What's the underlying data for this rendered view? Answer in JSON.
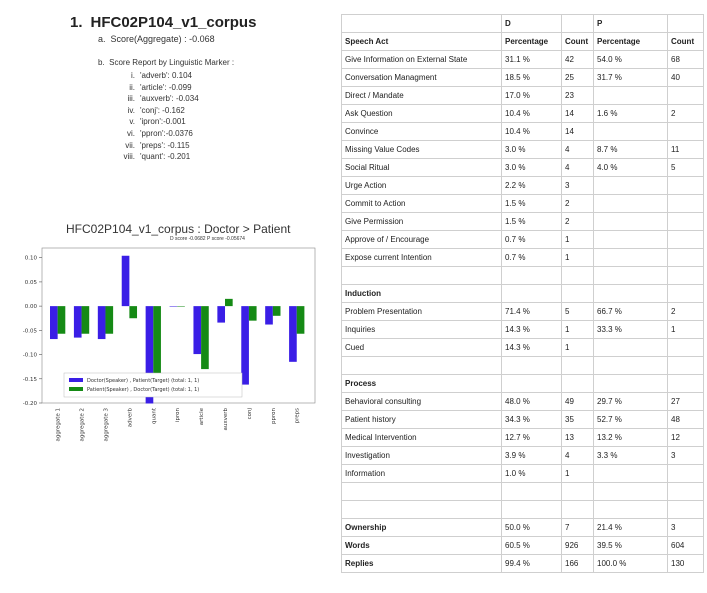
{
  "heading": {
    "number": "1.",
    "title": "HFC02P104_v1_corpus"
  },
  "score": {
    "letter": "a.",
    "label": "Score(Aggregate) : -0.068"
  },
  "report": {
    "letter": "b.",
    "label": "Score Report by Linguistic Marker :"
  },
  "markers": [
    {
      "rn": "i.",
      "text": "'adverb': 0.104"
    },
    {
      "rn": "ii.",
      "text": "'article': -0.099"
    },
    {
      "rn": "iii.",
      "text": "'auxverb': -0.034"
    },
    {
      "rn": "iv.",
      "text": "'conj': -0.162"
    },
    {
      "rn": "v.",
      "text": "'ipron':-0.001"
    },
    {
      "rn": "vi.",
      "text": "'ppron':-0.0376"
    },
    {
      "rn": "vii.",
      "text": "'preps': -0.115"
    },
    {
      "rn": "viii.",
      "text": "'quant': -0.201"
    }
  ],
  "chart_data": {
    "type": "bar",
    "title": "HFC02P104_v1_corpus : Doctor > Patient",
    "subtitle": "D score -0.0682  P score -0.05674",
    "categories": [
      "aggregate 1",
      "aggregate 2",
      "aggregate 3",
      "adverb",
      "quant",
      "ipron",
      "article",
      "auxverb",
      "conj",
      "ppron",
      "preps"
    ],
    "series": [
      {
        "name": "Doctor(Speaker) , Patient(Target) (total: 1, 1)",
        "color": "#3a1ee6",
        "values": [
          -0.068,
          -0.065,
          -0.068,
          0.104,
          -0.201,
          -0.001,
          -0.099,
          -0.034,
          -0.162,
          -0.038,
          -0.115
        ]
      },
      {
        "name": "Patient(Speaker) , Doctor(Target) (total: 1, 1)",
        "color": "#158a15",
        "values": [
          -0.057,
          -0.057,
          -0.057,
          -0.025,
          -0.155,
          -0.001,
          -0.13,
          0.015,
          -0.03,
          -0.02,
          -0.057
        ]
      }
    ],
    "ylim": [
      -0.2,
      0.12
    ],
    "yticks": [
      "0.10",
      "0.05",
      "0.00",
      "-0.05",
      "-0.10",
      "-0.15",
      "-0.20"
    ],
    "legend": "lower-left"
  },
  "table": {
    "header1": [
      "",
      "D",
      "",
      "P",
      ""
    ],
    "header2": [
      "Speech Act",
      "Percentage",
      "Count",
      "Percentage",
      "Count"
    ],
    "rows": [
      [
        "Give Information on External State",
        "31.1 %",
        "42",
        "54.0 %",
        "68"
      ],
      [
        "Conversation Managment",
        "18.5 %",
        "25",
        "31.7 %",
        "40"
      ],
      [
        "Direct / Mandate",
        "17.0 %",
        "23",
        "",
        ""
      ],
      [
        "Ask Question",
        "10.4 %",
        "14",
        "1.6 %",
        "2"
      ],
      [
        "Convince",
        "10.4 %",
        "14",
        "",
        ""
      ],
      [
        "Missing Value Codes",
        "3.0 %",
        "4",
        "8.7 %",
        "11"
      ],
      [
        "Social Ritual",
        "3.0 %",
        "4",
        "4.0 %",
        "5"
      ],
      [
        "Urge Action",
        "2.2 %",
        "3",
        "",
        ""
      ],
      [
        "Commit to Action",
        "1.5 %",
        "2",
        "",
        ""
      ],
      [
        "Give Permission",
        "1.5 %",
        "2",
        "",
        ""
      ],
      [
        "Approve of / Encourage",
        "0.7 %",
        "1",
        "",
        ""
      ],
      [
        "Expose current Intention",
        "0.7 %",
        "1",
        "",
        ""
      ],
      [
        "",
        "",
        "",
        "",
        ""
      ],
      [
        "Induction",
        "",
        "",
        "",
        ""
      ],
      [
        "Problem Presentation",
        "71.4 %",
        "5",
        "66.7 %",
        "2"
      ],
      [
        "Inquiries",
        "14.3 %",
        "1",
        "33.3 %",
        "1"
      ],
      [
        "Cued",
        "14.3 %",
        "1",
        "",
        ""
      ],
      [
        "",
        "",
        "",
        "",
        ""
      ],
      [
        "Process",
        "",
        "",
        "",
        ""
      ],
      [
        "Behavioral consulting",
        "48.0 %",
        "49",
        "29.7 %",
        "27"
      ],
      [
        "Patient history",
        "34.3 %",
        "35",
        "52.7 %",
        "48"
      ],
      [
        "Medical Intervention",
        "12.7 %",
        "13",
        "13.2 %",
        "12"
      ],
      [
        "Investigation",
        "3.9 %",
        "4",
        "3.3 %",
        "3"
      ],
      [
        "Information",
        "1.0 %",
        "1",
        "",
        ""
      ],
      [
        "",
        "",
        "",
        "",
        ""
      ],
      [
        "",
        "",
        "",
        "",
        ""
      ],
      [
        "Ownership",
        "50.0 %",
        "7",
        "21.4 %",
        "3"
      ],
      [
        "Words",
        "60.5 %",
        "926",
        "39.5 %",
        "604"
      ],
      [
        "Replies",
        "99.4 %",
        "166",
        "100.0 %",
        "130"
      ]
    ],
    "section_rows": [
      13,
      18,
      26,
      27,
      28
    ]
  }
}
